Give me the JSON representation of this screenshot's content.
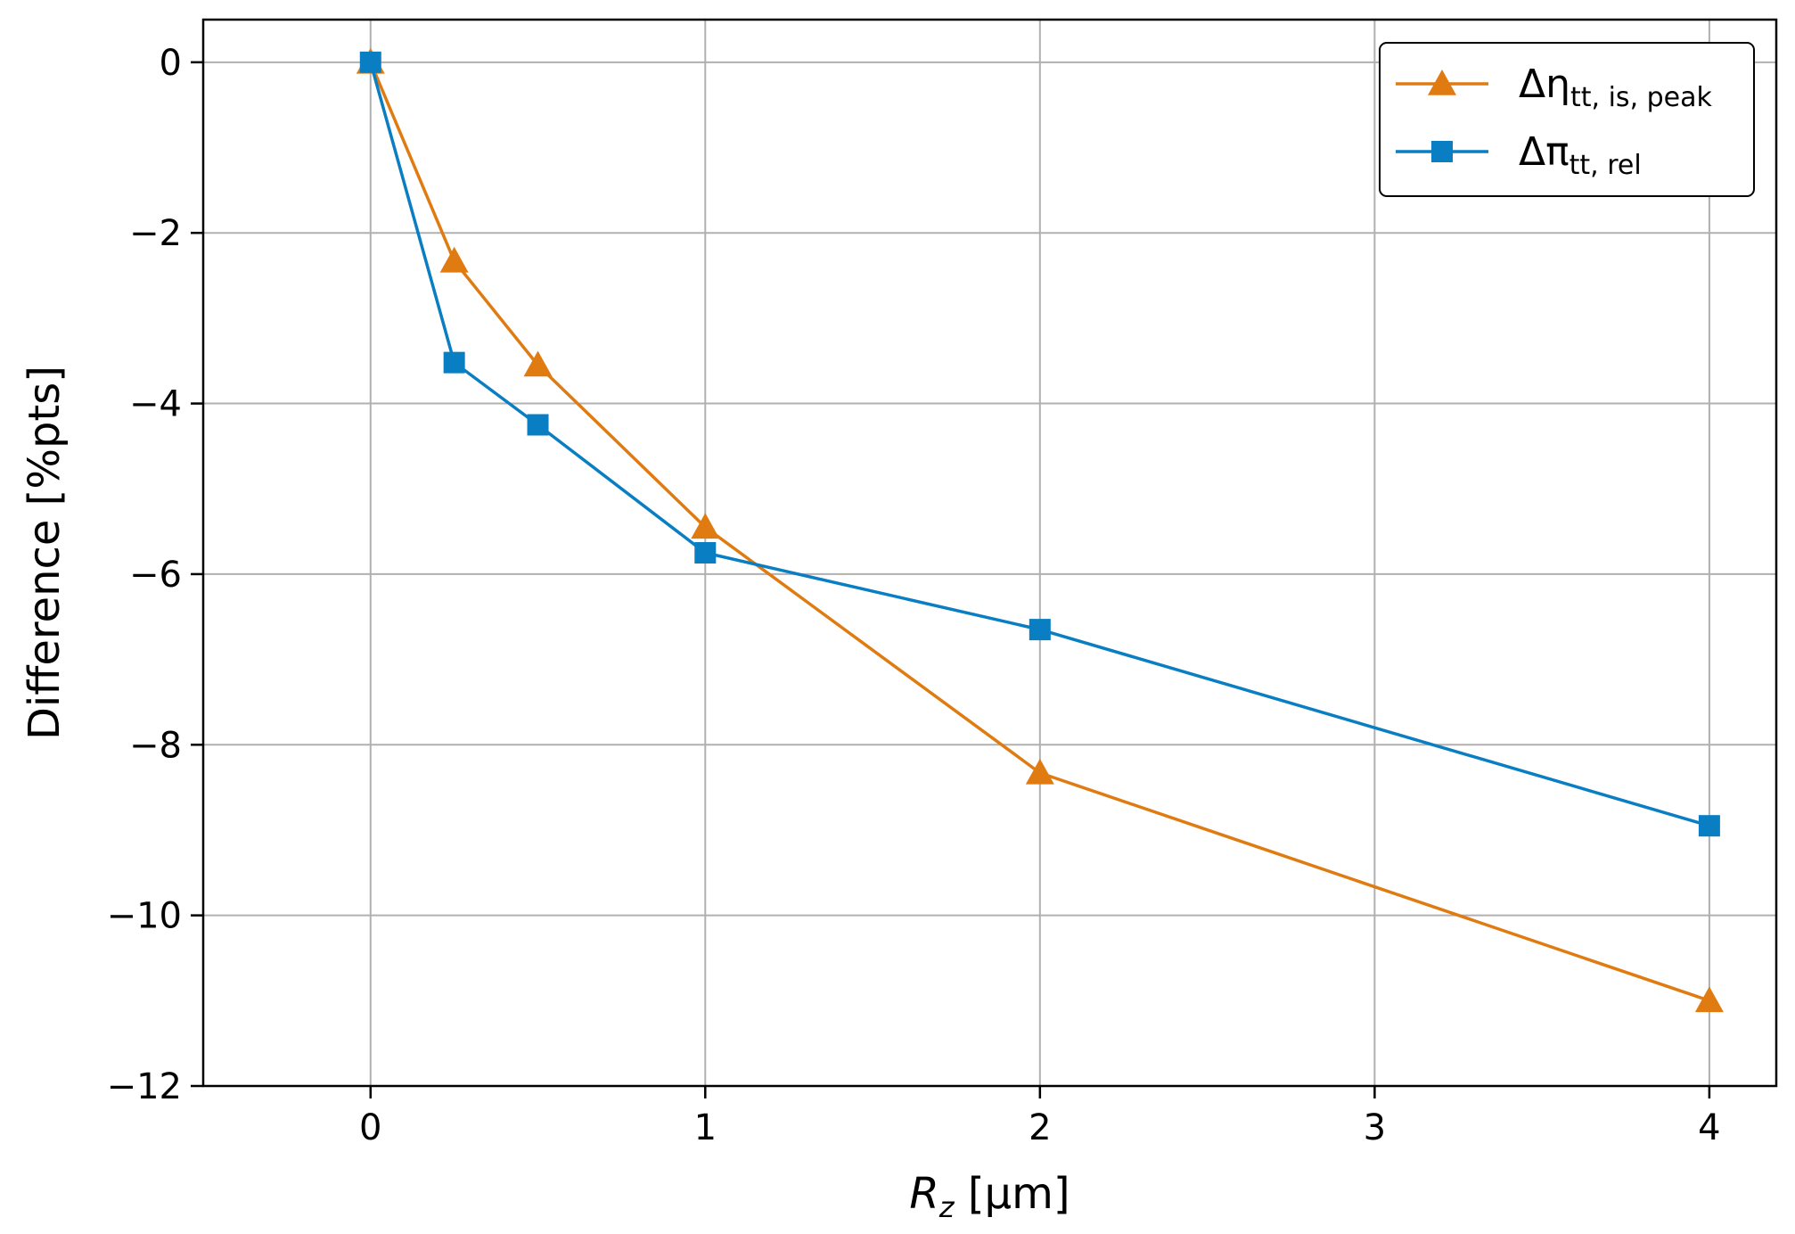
{
  "chart_data": {
    "type": "line",
    "xlabel_main": "R",
    "xlabel_sub": "z",
    "xlabel_unit": " [µm]",
    "ylabel": "Difference [%pts]",
    "xlim": [
      -0.5,
      4.2
    ],
    "ylim": [
      -12,
      0.5
    ],
    "xticks": [
      0,
      1,
      2,
      3,
      4
    ],
    "xtick_labels": [
      "0",
      "1",
      "2",
      "3",
      "4"
    ],
    "yticks": [
      0,
      -2,
      -4,
      -6,
      -8,
      -10,
      -12
    ],
    "ytick_labels": [
      "0",
      "−2",
      "−4",
      "−6",
      "−8",
      "−10",
      "−12"
    ],
    "grid": true,
    "legend_position": "top-right",
    "series": [
      {
        "name_main": "Δη",
        "name_sub": "tt, is, peak",
        "marker": "triangle",
        "color": "#e07b12",
        "x": [
          0,
          0.25,
          0.5,
          1,
          2,
          4
        ],
        "y": [
          0,
          -2.33,
          -3.55,
          -5.45,
          -8.33,
          -11.0
        ]
      },
      {
        "name_main": "Δπ",
        "name_sub": "tt, rel",
        "marker": "square",
        "color": "#0a7ec2",
        "x": [
          0,
          0.25,
          0.5,
          1,
          2,
          4
        ],
        "y": [
          0,
          -3.52,
          -4.25,
          -5.75,
          -6.65,
          -8.95
        ]
      }
    ]
  }
}
